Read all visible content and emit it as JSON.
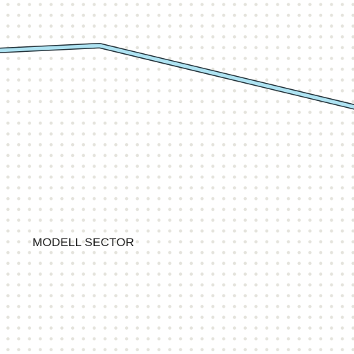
{
  "map": {
    "background_color": "#ffffff",
    "dot_color": "#e4e3dc",
    "road_fill_color": "#aee3f2",
    "road_outline_color": "#23323a",
    "label_color": "#1d1d1d",
    "sector_label": "MODELL SECTOR"
  }
}
